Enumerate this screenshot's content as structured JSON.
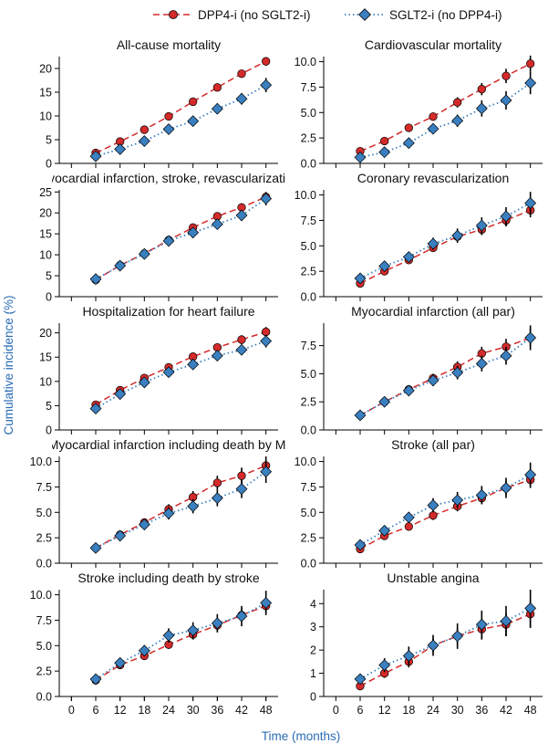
{
  "figure": {
    "ylabel": "Cumulative incidence (%)",
    "xlabel": "Time (months)",
    "series_names": [
      "DPP4-i (no SGLT2-i)",
      "SGLT2-i (no DPP4-i)"
    ],
    "colors": {
      "series0": "#d42a2a",
      "series1": "#3a7fbf",
      "axis_title": "#2a6cb4",
      "error_bar": "#000000"
    }
  },
  "chart_data": [
    {
      "type": "line",
      "title": "All-cause mortality",
      "xlabel": "Time (months)",
      "ylabel": "Cumulative incidence (%)",
      "x": [
        6,
        12,
        18,
        24,
        30,
        36,
        42,
        48
      ],
      "xlim": [
        -3,
        51
      ],
      "xticks": [
        "0",
        "6",
        "12",
        "18",
        "24",
        "30",
        "36",
        "42",
        "48"
      ],
      "xtick_values": [
        0,
        6,
        12,
        18,
        24,
        30,
        36,
        42,
        48
      ],
      "ylim": [
        0,
        22.5
      ],
      "yticks": [
        "0",
        "5",
        "10",
        "15",
        "20"
      ],
      "ytick_values": [
        0,
        5,
        10,
        15,
        20
      ],
      "show_xticks": false,
      "series": [
        {
          "name": "DPP4-i (no SGLT2-i)",
          "values": [
            2.2,
            4.6,
            7.1,
            9.9,
            13.0,
            16.0,
            18.9,
            21.5
          ],
          "ci": [
            0.3,
            0.4,
            0.4,
            0.5,
            0.6,
            0.7,
            0.8,
            0.9
          ]
        },
        {
          "name": "SGLT2-i (no DPP4-i)",
          "values": [
            1.5,
            3.0,
            4.7,
            7.2,
            8.9,
            11.5,
            13.6,
            16.5
          ],
          "ci": [
            0.4,
            0.5,
            0.6,
            0.8,
            0.9,
            1.1,
            1.2,
            1.5
          ]
        }
      ]
    },
    {
      "type": "line",
      "title": "Cardiovascular mortality",
      "xlabel": "Time (months)",
      "ylabel": "Cumulative incidence (%)",
      "x": [
        6,
        12,
        18,
        24,
        30,
        36,
        42,
        48
      ],
      "xlim": [
        -3,
        51
      ],
      "xticks": [
        "0",
        "6",
        "12",
        "18",
        "24",
        "30",
        "36",
        "42",
        "48"
      ],
      "xtick_values": [
        0,
        6,
        12,
        18,
        24,
        30,
        36,
        42,
        48
      ],
      "ylim": [
        0,
        10.5
      ],
      "yticks": [
        "0.0",
        "2.5",
        "5.0",
        "7.5",
        "10.0"
      ],
      "ytick_values": [
        0,
        2.5,
        5,
        7.5,
        10
      ],
      "show_xticks": false,
      "series": [
        {
          "name": "DPP4-i (no SGLT2-i)",
          "values": [
            1.2,
            2.2,
            3.5,
            4.6,
            6.0,
            7.3,
            8.6,
            9.8
          ],
          "ci": [
            0.2,
            0.25,
            0.3,
            0.4,
            0.5,
            0.6,
            0.7,
            0.8
          ]
        },
        {
          "name": "SGLT2-i (no DPP4-i)",
          "values": [
            0.6,
            1.1,
            2.0,
            3.4,
            4.2,
            5.4,
            6.2,
            7.9
          ],
          "ci": [
            0.2,
            0.3,
            0.4,
            0.5,
            0.6,
            0.8,
            0.9,
            1.1
          ]
        }
      ]
    },
    {
      "type": "line",
      "title": "Myocardial infarction, stroke, revascularization",
      "xlabel": "Time (months)",
      "ylabel": "Cumulative incidence (%)",
      "x": [
        6,
        12,
        18,
        24,
        30,
        36,
        42,
        48
      ],
      "xlim": [
        -3,
        51
      ],
      "xticks": [
        "0",
        "6",
        "12",
        "18",
        "24",
        "30",
        "36",
        "42",
        "48"
      ],
      "xtick_values": [
        0,
        6,
        12,
        18,
        24,
        30,
        36,
        42,
        48
      ],
      "ylim": [
        0,
        25.5
      ],
      "yticks": [
        "0",
        "5",
        "10",
        "15",
        "20",
        "25"
      ],
      "ytick_values": [
        0,
        5,
        10,
        15,
        20,
        25
      ],
      "show_xticks": false,
      "series": [
        {
          "name": "DPP4-i (no SGLT2-i)",
          "values": [
            4.0,
            7.5,
            10.3,
            13.5,
            16.5,
            19.2,
            21.3,
            23.8
          ],
          "ci": [
            0.4,
            0.5,
            0.6,
            0.7,
            0.8,
            0.9,
            1.0,
            1.1
          ]
        },
        {
          "name": "SGLT2-i (no DPP4-i)",
          "values": [
            4.2,
            7.4,
            10.2,
            13.3,
            15.3,
            17.3,
            19.4,
            23.4
          ],
          "ci": [
            0.5,
            0.6,
            0.7,
            0.9,
            1.0,
            1.2,
            1.3,
            1.6
          ]
        }
      ]
    },
    {
      "type": "line",
      "title": "Coronary revascularization",
      "xlabel": "Time (months)",
      "ylabel": "Cumulative incidence (%)",
      "x": [
        6,
        12,
        18,
        24,
        30,
        36,
        42,
        48
      ],
      "xlim": [
        -3,
        51
      ],
      "xticks": [
        "0",
        "6",
        "12",
        "18",
        "24",
        "30",
        "36",
        "42",
        "48"
      ],
      "xtick_values": [
        0,
        6,
        12,
        18,
        24,
        30,
        36,
        42,
        48
      ],
      "ylim": [
        0,
        10.5
      ],
      "yticks": [
        "0.0",
        "2.5",
        "5.0",
        "7.5",
        "10.0"
      ],
      "ytick_values": [
        0,
        2.5,
        5,
        7.5,
        10
      ],
      "show_xticks": false,
      "series": [
        {
          "name": "DPP4-i (no SGLT2-i)",
          "values": [
            1.3,
            2.5,
            3.6,
            4.8,
            5.9,
            6.6,
            7.5,
            8.5
          ],
          "ci": [
            0.2,
            0.3,
            0.35,
            0.4,
            0.5,
            0.55,
            0.6,
            0.7
          ]
        },
        {
          "name": "SGLT2-i (no DPP4-i)",
          "values": [
            1.8,
            3.0,
            3.9,
            5.2,
            6.0,
            7.0,
            7.9,
            9.2
          ],
          "ci": [
            0.3,
            0.4,
            0.5,
            0.6,
            0.7,
            0.8,
            0.9,
            1.1
          ]
        }
      ]
    },
    {
      "type": "line",
      "title": "Hospitalization for heart failure",
      "xlabel": "Time (months)",
      "ylabel": "Cumulative incidence (%)",
      "x": [
        6,
        12,
        18,
        24,
        30,
        36,
        42,
        48
      ],
      "xlim": [
        -3,
        51
      ],
      "xticks": [
        "0",
        "6",
        "12",
        "18",
        "24",
        "30",
        "36",
        "42",
        "48"
      ],
      "xtick_values": [
        0,
        6,
        12,
        18,
        24,
        30,
        36,
        42,
        48
      ],
      "ylim": [
        0,
        22
      ],
      "yticks": [
        "0",
        "5",
        "10",
        "15",
        "20"
      ],
      "ytick_values": [
        0,
        5,
        10,
        15,
        20
      ],
      "show_xticks": false,
      "series": [
        {
          "name": "DPP4-i (no SGLT2-i)",
          "values": [
            5.2,
            8.2,
            10.7,
            12.9,
            15.1,
            17.0,
            18.6,
            20.2
          ],
          "ci": [
            0.4,
            0.5,
            0.6,
            0.6,
            0.7,
            0.8,
            0.9,
            1.0
          ]
        },
        {
          "name": "SGLT2-i (no DPP4-i)",
          "values": [
            4.4,
            7.4,
            9.8,
            11.9,
            13.5,
            15.3,
            16.5,
            18.3
          ],
          "ci": [
            0.5,
            0.6,
            0.7,
            0.8,
            0.9,
            1.0,
            1.1,
            1.3
          ]
        }
      ]
    },
    {
      "type": "line",
      "title": "Myocardial infarction (all par)",
      "xlabel": "Time (months)",
      "ylabel": "Cumulative incidence (%)",
      "x": [
        6,
        12,
        18,
        24,
        30,
        36,
        42,
        48
      ],
      "xlim": [
        -3,
        51
      ],
      "xticks": [
        "0",
        "6",
        "12",
        "18",
        "24",
        "30",
        "36",
        "42",
        "48"
      ],
      "xtick_values": [
        0,
        6,
        12,
        18,
        24,
        30,
        36,
        42,
        48
      ],
      "ylim": [
        0,
        9.5
      ],
      "yticks": [
        "0.0",
        "2.5",
        "5.0",
        "7.5"
      ],
      "ytick_values": [
        0,
        2.5,
        5,
        7.5
      ],
      "show_xticks": false,
      "series": [
        {
          "name": "DPP4-i (no SGLT2-i)",
          "values": [
            1.3,
            2.5,
            3.6,
            4.6,
            5.6,
            6.8,
            7.4,
            8.2
          ],
          "ci": [
            0.2,
            0.25,
            0.3,
            0.4,
            0.5,
            0.6,
            0.7,
            0.8
          ]
        },
        {
          "name": "SGLT2-i (no DPP4-i)",
          "values": [
            1.3,
            2.5,
            3.5,
            4.4,
            5.1,
            5.9,
            6.6,
            8.2
          ],
          "ci": [
            0.2,
            0.3,
            0.4,
            0.5,
            0.6,
            0.7,
            0.8,
            1.1
          ]
        }
      ]
    },
    {
      "type": "line",
      "title": "Myocardial infarction including death by MI",
      "xlabel": "Time (months)",
      "ylabel": "Cumulative incidence (%)",
      "x": [
        6,
        12,
        18,
        24,
        30,
        36,
        42,
        48
      ],
      "xlim": [
        -3,
        51
      ],
      "xticks": [
        "0",
        "6",
        "12",
        "18",
        "24",
        "30",
        "36",
        "42",
        "48"
      ],
      "xtick_values": [
        0,
        6,
        12,
        18,
        24,
        30,
        36,
        42,
        48
      ],
      "ylim": [
        0,
        10.5
      ],
      "yticks": [
        "0.0",
        "2.5",
        "5.0",
        "7.5",
        "10.0"
      ],
      "ytick_values": [
        0,
        2.5,
        5,
        7.5,
        10
      ],
      "show_xticks": false,
      "series": [
        {
          "name": "DPP4-i (no SGLT2-i)",
          "values": [
            1.5,
            2.8,
            4.0,
            5.3,
            6.5,
            7.9,
            8.6,
            9.6
          ],
          "ci": [
            0.2,
            0.3,
            0.4,
            0.5,
            0.6,
            0.7,
            0.8,
            0.9
          ]
        },
        {
          "name": "SGLT2-i (no DPP4-i)",
          "values": [
            1.5,
            2.7,
            3.8,
            4.9,
            5.6,
            6.4,
            7.3,
            9.0
          ],
          "ci": [
            0.2,
            0.3,
            0.4,
            0.6,
            0.7,
            0.8,
            0.9,
            1.1
          ]
        }
      ]
    },
    {
      "type": "line",
      "title": "Stroke (all par)",
      "xlabel": "Time (months)",
      "ylabel": "Cumulative incidence (%)",
      "x": [
        6,
        12,
        18,
        24,
        30,
        36,
        42,
        48
      ],
      "xlim": [
        -3,
        51
      ],
      "xticks": [
        "0",
        "6",
        "12",
        "18",
        "24",
        "30",
        "36",
        "42",
        "48"
      ],
      "xtick_values": [
        0,
        6,
        12,
        18,
        24,
        30,
        36,
        42,
        48
      ],
      "ylim": [
        0,
        10.5
      ],
      "yticks": [
        "0.0",
        "2.5",
        "5.0",
        "7.5",
        "10.0"
      ],
      "ytick_values": [
        0,
        2.5,
        5,
        7.5,
        10
      ],
      "show_xticks": false,
      "series": [
        {
          "name": "DPP4-i (no SGLT2-i)",
          "values": [
            1.4,
            2.7,
            3.6,
            4.7,
            5.6,
            6.4,
            7.4,
            8.2
          ],
          "ci": [
            0.2,
            0.3,
            0.4,
            0.45,
            0.5,
            0.6,
            0.7,
            0.8
          ]
        },
        {
          "name": "SGLT2-i (no DPP4-i)",
          "values": [
            1.8,
            3.2,
            4.5,
            5.7,
            6.2,
            6.7,
            7.4,
            8.7
          ],
          "ci": [
            0.3,
            0.4,
            0.5,
            0.7,
            0.8,
            0.9,
            1.0,
            1.2
          ]
        }
      ]
    },
    {
      "type": "line",
      "title": "Stroke including death by stroke",
      "xlabel": "Time (months)",
      "ylabel": "Cumulative incidence (%)",
      "x": [
        6,
        12,
        18,
        24,
        30,
        36,
        42,
        48
      ],
      "xlim": [
        -3,
        51
      ],
      "xticks": [
        "0",
        "6",
        "12",
        "18",
        "24",
        "30",
        "36",
        "42",
        "48"
      ],
      "xtick_values": [
        0,
        6,
        12,
        18,
        24,
        30,
        36,
        42,
        48
      ],
      "ylim": [
        0,
        10.5
      ],
      "yticks": [
        "0.0",
        "2.5",
        "5.0",
        "7.5",
        "10.0"
      ],
      "ytick_values": [
        0,
        2.5,
        5,
        7.5,
        10
      ],
      "show_xticks": false,
      "series": [
        {
          "name": "DPP4-i (no SGLT2-i)",
          "values": [
            1.6,
            3.1,
            4.0,
            5.1,
            6.1,
            7.0,
            8.0,
            8.9
          ],
          "ci": [
            0.2,
            0.3,
            0.35,
            0.4,
            0.5,
            0.6,
            0.65,
            0.7
          ]
        },
        {
          "name": "SGLT2-i (no DPP4-i)",
          "values": [
            1.7,
            3.3,
            4.5,
            6.0,
            6.5,
            7.2,
            7.9,
            9.2
          ],
          "ci": [
            0.3,
            0.4,
            0.55,
            0.7,
            0.8,
            0.9,
            1.0,
            1.2
          ]
        }
      ]
    },
    {
      "type": "line",
      "title": "Unstable angina",
      "xlabel": "Time (months)",
      "ylabel": "Cumulative incidence (%)",
      "x": [
        6,
        12,
        18,
        24,
        30,
        36,
        42,
        48
      ],
      "xlim": [
        -3,
        51
      ],
      "xticks": [
        "0",
        "6",
        "12",
        "18",
        "24",
        "30",
        "36",
        "42",
        "48"
      ],
      "xtick_values": [
        0,
        6,
        12,
        18,
        24,
        30,
        36,
        42,
        48
      ],
      "ylim": [
        0,
        4.6
      ],
      "yticks": [
        "0",
        "1",
        "2",
        "3",
        "4"
      ],
      "ytick_values": [
        0,
        1,
        2,
        3,
        4
      ],
      "show_xticks": true,
      "series": [
        {
          "name": "DPP4-i (no SGLT2-i)",
          "values": [
            0.45,
            1.0,
            1.5,
            2.2,
            2.6,
            2.9,
            3.1,
            3.55
          ],
          "ci": [
            0.15,
            0.2,
            0.25,
            0.3,
            0.35,
            0.45,
            0.5,
            0.6
          ]
        },
        {
          "name": "SGLT2-i (no DPP4-i)",
          "values": [
            0.75,
            1.35,
            1.75,
            2.2,
            2.6,
            3.1,
            3.25,
            3.8
          ],
          "ci": [
            0.2,
            0.3,
            0.4,
            0.45,
            0.55,
            0.6,
            0.65,
            0.8
          ]
        }
      ]
    },
    {
      "type": "axis",
      "title": "",
      "xlabel": "Time (months)",
      "xticks": [
        "0",
        "6",
        "12",
        "18",
        "24",
        "30",
        "36",
        "42",
        "48"
      ],
      "xtick_values": [
        0,
        6,
        12,
        18,
        24,
        30,
        36,
        42,
        48
      ],
      "xlim": [
        -3,
        51
      ],
      "show_xticks": true,
      "series": []
    }
  ]
}
